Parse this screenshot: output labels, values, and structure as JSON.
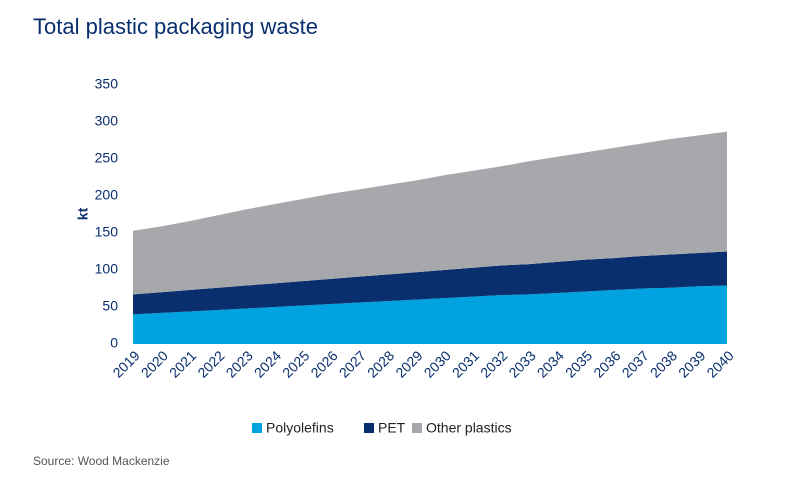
{
  "chart_data": {
    "type": "stacked-area",
    "title": "Total plastic packaging waste",
    "y_label": "kt",
    "source": "Source: Wood Mackenzie",
    "categories": [
      "2019",
      "2020",
      "2021",
      "2022",
      "2023",
      "2024",
      "2025",
      "2026",
      "2027",
      "2028",
      "2029",
      "2030",
      "2031",
      "2032",
      "2033",
      "2034",
      "2035",
      "2036",
      "2037",
      "2038",
      "2039",
      "2040"
    ],
    "series": [
      {
        "name": "Polyolefins",
        "color": "#00a3e0",
        "values": [
          40,
          42,
          44,
          46,
          48,
          50,
          52,
          54,
          56,
          58,
          60,
          62,
          64,
          66,
          67,
          69,
          71,
          73,
          75,
          76,
          78,
          79
        ]
      },
      {
        "name": "PET",
        "color": "#0a2f6e",
        "values": [
          27,
          28,
          29,
          30,
          31,
          32,
          33,
          34,
          35,
          36,
          37,
          38,
          39,
          40,
          41,
          42,
          43,
          43,
          44,
          45,
          45,
          46
        ]
      },
      {
        "name": "Other plastics",
        "color": "#a7a8ac",
        "values": [
          86,
          89,
          93,
          98,
          103,
          107,
          111,
          115,
          118,
          121,
          124,
          128,
          131,
          134,
          139,
          142,
          145,
          149,
          152,
          156,
          159,
          162
        ]
      }
    ],
    "ylim": [
      0,
      350
    ],
    "yticks": [
      0,
      50,
      100,
      150,
      200,
      250,
      300,
      350
    ],
    "grid": false,
    "legend": "bottom"
  }
}
